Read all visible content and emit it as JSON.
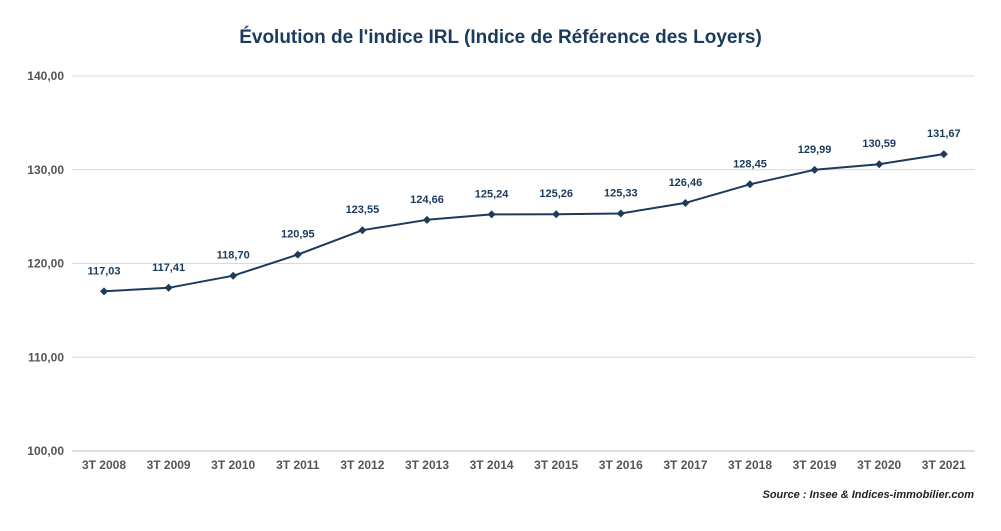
{
  "chart_data": {
    "type": "line",
    "title": "Évolution de l'indice IRL (Indice de Référence des Loyers)",
    "xlabel": "",
    "ylabel": "",
    "categories": [
      "3T 2008",
      "3T 2009",
      "3T 2010",
      "3T 2011",
      "3T 2012",
      "3T 2013",
      "3T 2014",
      "3T 2015",
      "3T 2016",
      "3T 2017",
      "3T 2018",
      "3T 2019",
      "3T 2020",
      "3T 2021"
    ],
    "values": [
      117.03,
      117.41,
      118.7,
      120.95,
      123.55,
      124.66,
      125.24,
      125.26,
      125.33,
      126.46,
      128.45,
      129.99,
      130.59,
      131.67
    ],
    "value_labels": [
      "117,03",
      "117,41",
      "118,70",
      "120,95",
      "123,55",
      "124,66",
      "125,24",
      "125,26",
      "125,33",
      "126,46",
      "128,45",
      "129,99",
      "130,59",
      "131,67"
    ],
    "ylim": [
      100,
      140
    ],
    "yticks": [
      100,
      110,
      120,
      130,
      140
    ],
    "ytick_labels": [
      "100,00",
      "110,00",
      "120,00",
      "130,00",
      "140,00"
    ],
    "grid": true,
    "legend": "none",
    "colors": {
      "line": "#1b3a5c",
      "grid": "#d9d9d9",
      "axis_text": "#555555",
      "label_text": "#1b3a5c"
    },
    "source": "Source : Insee & Indices-immobilier.com"
  }
}
